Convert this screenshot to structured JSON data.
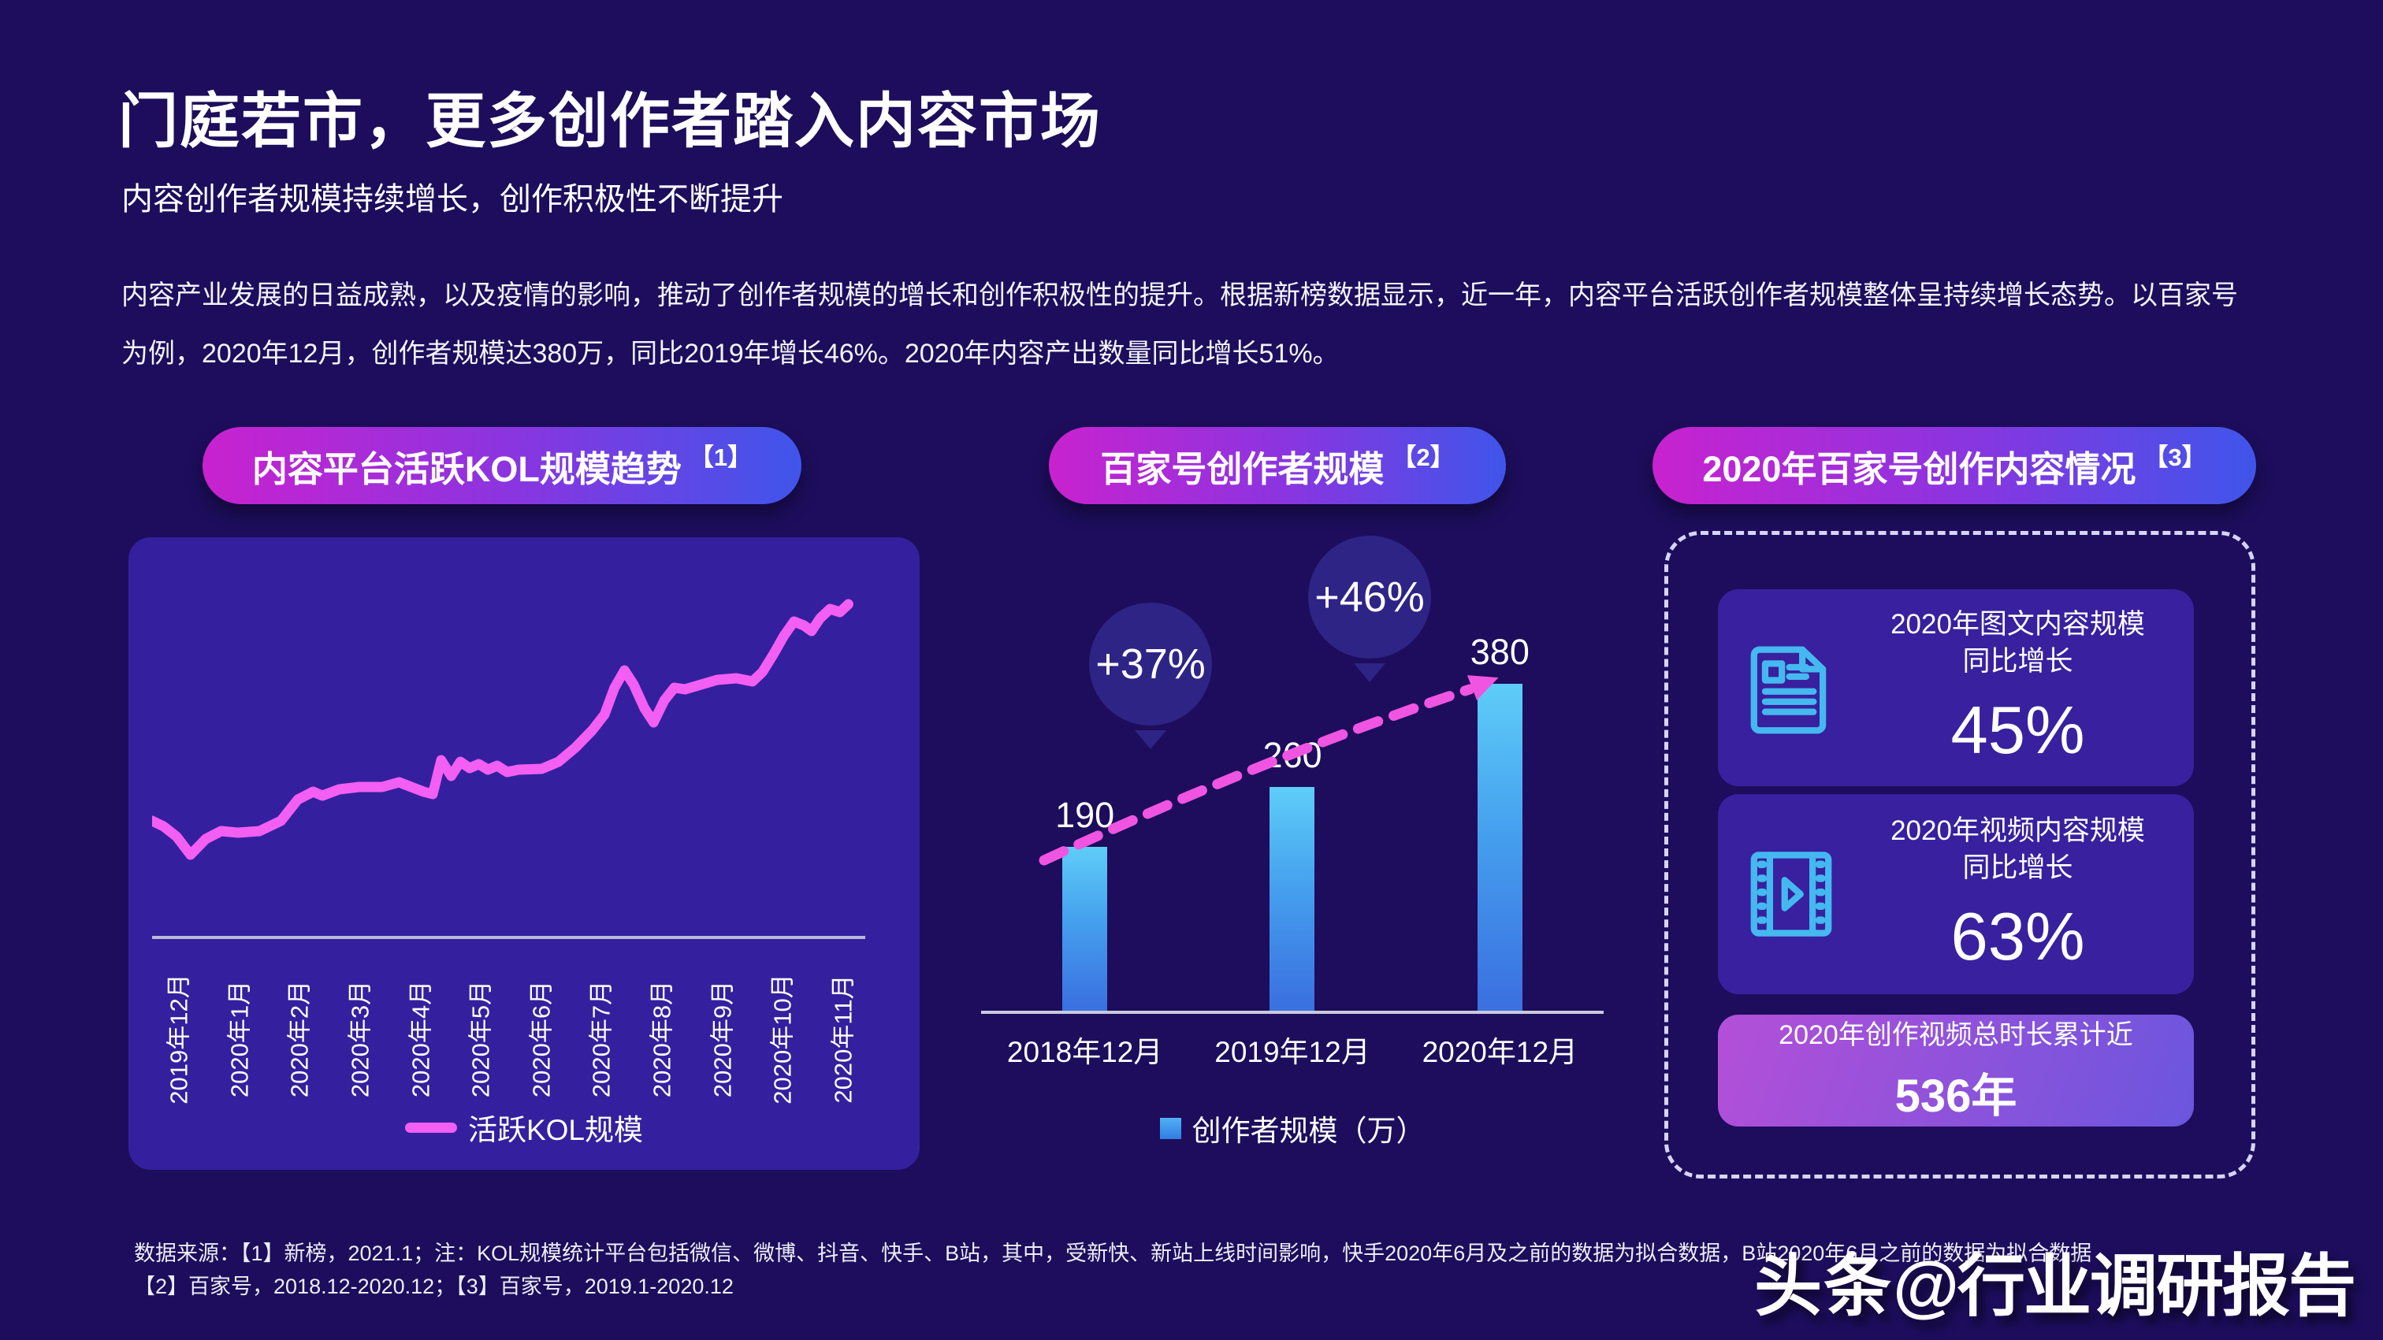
{
  "page": {
    "title": "门庭若市，更多创作者踏入内容市场",
    "subtitle": "内容创作者规模持续增长，创作积极性不断提升",
    "paragraph": "内容产业发展的日益成熟，以及疫情的影响，推动了创作者规模的增长和创作积极性的提升。根据新榜数据显示，近一年，内容平台活跃创作者规模整体呈持续增长态势。以百家号为例，2020年12月，创作者规模达380万，同比2019年增长46%。2020年内容产出数量同比增长51%。",
    "footnote_line1": "数据来源：【1】新榜，2021.1；注：KOL规模统计平台包括微信、微博、抖音、快手、B站，其中，受新快、新站上线时间影响，快手2020年6月及之前的数据为拟合数据，B站2020年6月之前的数据为拟合数据",
    "footnote_line2": "【2】百家号，2018.12-2020.12；【3】百家号，2019.1-2020.12",
    "watermark": {
      "brand": "头条",
      "handle": "@行业调研报告"
    },
    "colors": {
      "background": "#1d0d5c",
      "panel": "#34209e",
      "card": "#38209f",
      "accent_magenta": "#f25ff2",
      "trend_dash": "#f055e2",
      "pill_gradient": [
        "#c922cf",
        "#8a35e0",
        "#3f55ea"
      ],
      "bar_gradient": [
        "#5ecdf8",
        "#3a6fe0"
      ],
      "bubble": "#2e2486",
      "dashed_border": "#d8d4f8",
      "axis": "#c9c9dd",
      "icon_cyan": "#45b8f0",
      "card3_gradient": [
        "#b44fd8",
        "#6b56de"
      ]
    }
  },
  "kol_panel": {
    "header": "内容平台活跃KOL规模趋势",
    "header_ref": "【1】",
    "legend": "活跃KOL规模"
  },
  "bar_panel": {
    "header": "百家号创作者规模",
    "header_ref": "【2】",
    "legend": "创作者规模（万）",
    "bubbles": [
      "+37%",
      "+46%"
    ]
  },
  "content_panel": {
    "header": "2020年百家号创作内容情况",
    "header_ref": "【3】",
    "cards": [
      {
        "icon": "article-icon",
        "line1": "2020年图文内容规模",
        "line2": "同比增长",
        "value": "45%"
      },
      {
        "icon": "video-icon",
        "line1": "2020年视频内容规模",
        "line2": "同比增长",
        "value": "63%"
      },
      {
        "line1": "2020年创作视频总时长累计近",
        "value": "536年"
      }
    ]
  },
  "chart_data": [
    {
      "type": "line",
      "title": "内容平台活跃KOL规模趋势【1】",
      "series": [
        {
          "name": "活跃KOL规模",
          "relative_values_0_100_estimated": [
            32,
            27,
            30,
            42,
            47,
            46,
            48,
            52,
            62,
            80,
            85,
            96
          ]
        }
      ],
      "categories": [
        "2019年12月",
        "2020年1月",
        "2020年2月",
        "2020年3月",
        "2020年4月",
        "2020年5月",
        "2020年6月",
        "2020年7月",
        "2020年8月",
        "2020年9月",
        "2020年10月",
        "2020年11月"
      ],
      "xlabel": "",
      "ylabel": "",
      "y_axis": "unlabeled",
      "grid": false,
      "legend_position": "bottom",
      "polyline_930x450": [
        [
          0,
          305
        ],
        [
          15,
          312
        ],
        [
          32,
          325
        ],
        [
          50,
          348
        ],
        [
          70,
          328
        ],
        [
          90,
          318
        ],
        [
          112,
          320
        ],
        [
          140,
          318
        ],
        [
          168,
          305
        ],
        [
          190,
          278
        ],
        [
          210,
          268
        ],
        [
          222,
          273
        ],
        [
          244,
          265
        ],
        [
          270,
          262
        ],
        [
          300,
          262
        ],
        [
          322,
          256
        ],
        [
          338,
          262
        ],
        [
          354,
          268
        ],
        [
          366,
          271
        ],
        [
          377,
          228
        ],
        [
          390,
          248
        ],
        [
          402,
          230
        ],
        [
          414,
          238
        ],
        [
          426,
          233
        ],
        [
          438,
          240
        ],
        [
          450,
          235
        ],
        [
          463,
          243
        ],
        [
          478,
          240
        ],
        [
          508,
          239
        ],
        [
          530,
          230
        ],
        [
          552,
          212
        ],
        [
          574,
          190
        ],
        [
          590,
          170
        ],
        [
          603,
          136
        ],
        [
          616,
          114
        ],
        [
          628,
          132
        ],
        [
          642,
          162
        ],
        [
          654,
          180
        ],
        [
          668,
          152
        ],
        [
          681,
          136
        ],
        [
          695,
          138
        ],
        [
          716,
          132
        ],
        [
          737,
          126
        ],
        [
          762,
          124
        ],
        [
          783,
          128
        ],
        [
          796,
          116
        ],
        [
          810,
          94
        ],
        [
          824,
          70
        ],
        [
          837,
          52
        ],
        [
          850,
          57
        ],
        [
          860,
          64
        ],
        [
          871,
          48
        ],
        [
          884,
          36
        ],
        [
          897,
          40
        ],
        [
          908,
          30
        ]
      ]
    },
    {
      "type": "bar",
      "title": "百家号创作者规模【2】",
      "categories": [
        "2018年12月",
        "2019年12月",
        "2020年12月"
      ],
      "values": [
        190,
        260,
        380
      ],
      "series_name": "创作者规模（万）",
      "annotations": [
        {
          "label": "+37%",
          "between": [
            "2018年12月",
            "2019年12月"
          ]
        },
        {
          "label": "+46%",
          "between": [
            "2019年12月",
            "2020年12月"
          ]
        }
      ],
      "trend_line": "dashed magenta arrow rising across bar tops",
      "xlabel": "",
      "ylabel": "",
      "ylim": [
        0,
        420
      ],
      "grid": false,
      "legend_position": "bottom"
    }
  ]
}
